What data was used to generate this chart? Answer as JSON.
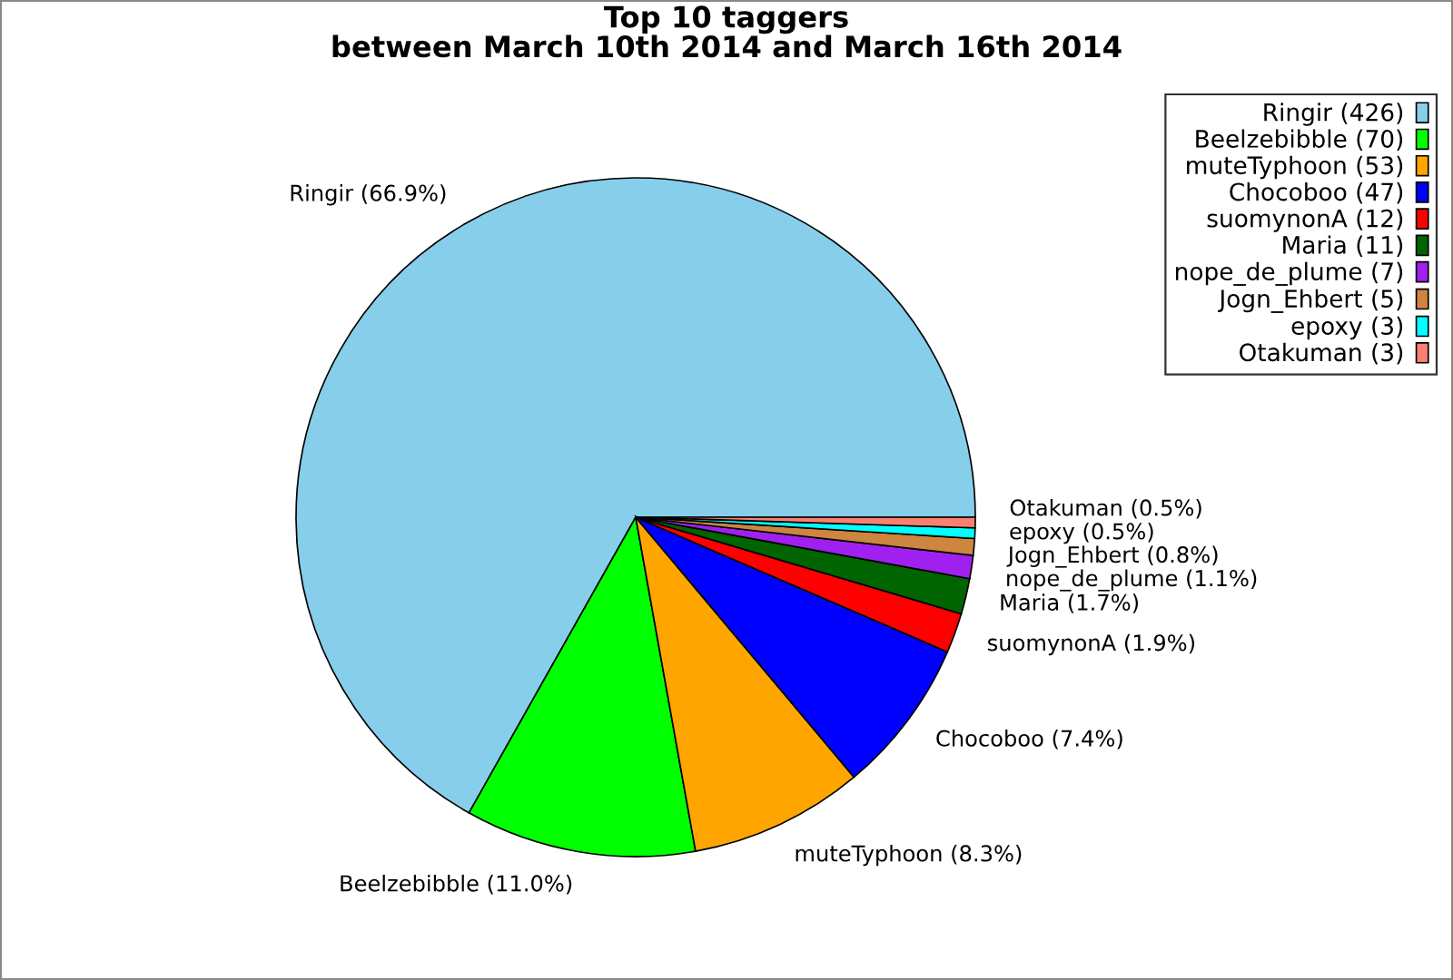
{
  "chart_data": {
    "type": "pie",
    "title": "Top 10 taggers\nbetween March 10th 2014 and March 16th 2014",
    "categories": [
      "Ringir (426)",
      "Beelzebibble (70)",
      "muteTyphoon (53)",
      "Chocoboo (47)",
      "suomynonA (12)",
      "Maria (11)",
      "nope_de_plume (7)",
      "Jogn_Ehbert (5)",
      "epoxy (3)",
      "Otakuman (3)"
    ],
    "values": [
      66.9,
      11.0,
      8.3,
      7.4,
      1.9,
      1.7,
      1.1,
      0.8,
      0.5,
      0.5
    ],
    "colors": [
      "#87ceeb",
      "#00ff00",
      "#ffa500",
      "#0000ff",
      "#ff0000",
      "#006400",
      "#a020f0",
      "#cd853f",
      "#00ffff",
      "#fa8072"
    ],
    "value_labels": [
      "Ringir (66.9%)",
      "Beelzebibble (11.0%)",
      "muteTyphoon (8.3%)",
      "Chocoboo (7.4%)",
      "suomynonA (1.9%)",
      "Maria (1.7%)",
      "nope_de_plume (1.1%)",
      "Jogn_Ehbert (0.8%)",
      "epoxy (0.5%)",
      "Otakuman (0.5%)"
    ],
    "legend": "top right"
  }
}
